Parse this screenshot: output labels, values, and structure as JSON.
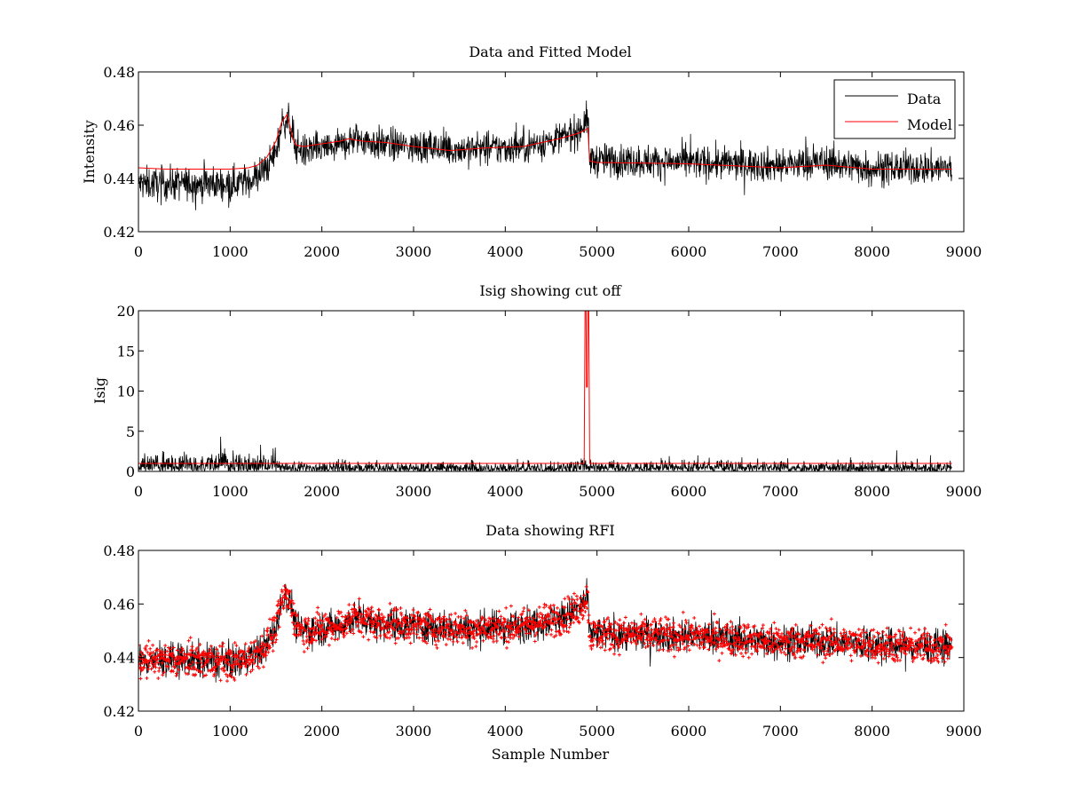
{
  "chart_data": [
    {
      "type": "line",
      "title": "Data and Fitted Model",
      "xlabel": "",
      "ylabel": "Intensity",
      "xlim": [
        0,
        9000
      ],
      "ylim": [
        0.42,
        0.48
      ],
      "xticks": [
        0,
        1000,
        2000,
        3000,
        4000,
        5000,
        6000,
        7000,
        8000,
        9000
      ],
      "yticks": [
        0.42,
        0.44,
        0.46,
        0.48
      ],
      "ytick_labels": [
        "0.42",
        "0.44",
        "0.46",
        "0.48"
      ],
      "legend_position": "top-right",
      "grid": false,
      "series": [
        {
          "name": "Data",
          "color": "#000000",
          "render": "noisy",
          "noise_amplitude": 0.006,
          "x": [
            0,
            200,
            500,
            800,
            1000,
            1200,
            1300,
            1400,
            1500,
            1560,
            1600,
            1640,
            1680,
            1720,
            1800,
            2000,
            2200,
            2300,
            2400,
            2600,
            3000,
            3400,
            3800,
            4200,
            4600,
            4800,
            4880,
            4900,
            4920,
            5000,
            6000,
            7000,
            7500,
            8000,
            8500,
            8870
          ],
          "y": [
            0.438,
            0.438,
            0.438,
            0.438,
            0.438,
            0.439,
            0.441,
            0.444,
            0.45,
            0.46,
            0.462,
            0.461,
            0.457,
            0.452,
            0.45,
            0.451,
            0.452,
            0.454,
            0.455,
            0.453,
            0.452,
            0.451,
            0.451,
            0.452,
            0.455,
            0.458,
            0.462,
            0.462,
            0.447,
            0.447,
            0.446,
            0.445,
            0.446,
            0.444,
            0.444,
            0.444
          ]
        },
        {
          "name": "Model",
          "color": "#ff0000",
          "render": "line",
          "x": [
            0,
            300,
            700,
            1000,
            1200,
            1300,
            1400,
            1500,
            1560,
            1620,
            1650,
            1680,
            1720,
            1800,
            2000,
            2200,
            2300,
            2350,
            2450,
            2700,
            3000,
            3400,
            3800,
            4200,
            4600,
            4800,
            4890,
            4900,
            4920,
            5000,
            6000,
            7000,
            7500,
            8000,
            8500,
            8870
          ],
          "y": [
            0.444,
            0.4435,
            0.4435,
            0.4435,
            0.444,
            0.445,
            0.448,
            0.454,
            0.461,
            0.464,
            0.46,
            0.455,
            0.4525,
            0.452,
            0.453,
            0.454,
            0.455,
            0.4545,
            0.454,
            0.4535,
            0.452,
            0.4505,
            0.4515,
            0.452,
            0.455,
            0.457,
            0.4585,
            0.459,
            0.4465,
            0.446,
            0.4455,
            0.444,
            0.445,
            0.4435,
            0.4435,
            0.4435
          ]
        }
      ]
    },
    {
      "type": "line",
      "title": "Isig showing cut off",
      "xlabel": "",
      "ylabel": "Isig",
      "xlim": [
        0,
        9000
      ],
      "ylim": [
        0,
        20
      ],
      "xticks": [
        0,
        1000,
        2000,
        3000,
        4000,
        5000,
        6000,
        7000,
        8000,
        9000
      ],
      "yticks": [
        0,
        5,
        10,
        15,
        20
      ],
      "ytick_labels": [
        "0",
        "5",
        "10",
        "15",
        "20"
      ],
      "grid": false,
      "series": [
        {
          "color": "#000000",
          "render": "noisy-positive",
          "noise_amplitude": 1.8,
          "x": [
            0,
            1500,
            1520,
            4800,
            4850,
            5000,
            8870
          ],
          "y": [
            1.1,
            1.1,
            0.6,
            0.6,
            0.9,
            0.7,
            0.6
          ]
        },
        {
          "color": "#ff0000",
          "render": "line",
          "x": [
            0,
            1500,
            1520,
            4860,
            4870,
            4880,
            4885,
            4895,
            4900,
            4905,
            4910,
            4920,
            4930,
            8000,
            8870
          ],
          "y": [
            1.0,
            1.0,
            1.0,
            1.0,
            20,
            20,
            10.5,
            10.5,
            20,
            20,
            20,
            1.0,
            1.0,
            1.0,
            1.0
          ]
        }
      ]
    },
    {
      "type": "scatter",
      "title": "Data showing RFI",
      "xlabel": "Sample Number",
      "ylabel": "",
      "xlim": [
        0,
        9000
      ],
      "ylim": [
        0.42,
        0.48
      ],
      "xticks": [
        0,
        1000,
        2000,
        3000,
        4000,
        5000,
        6000,
        7000,
        8000,
        9000
      ],
      "yticks": [
        0.42,
        0.44,
        0.46,
        0.48
      ],
      "ytick_labels": [
        "0.42",
        "0.44",
        "0.46",
        "0.48"
      ],
      "grid": false,
      "series": [
        {
          "color": "#000000",
          "render": "noisy",
          "noise_amplitude": 0.006,
          "x": [
            0,
            200,
            500,
            800,
            1000,
            1200,
            1300,
            1400,
            1500,
            1560,
            1600,
            1640,
            1680,
            1720,
            1800,
            2000,
            2200,
            2300,
            2400,
            2600,
            3000,
            3400,
            3800,
            4200,
            4600,
            4800,
            4880,
            4900,
            4920,
            5000,
            6000,
            7000,
            7500,
            8000,
            8500,
            8870
          ],
          "y": [
            0.439,
            0.439,
            0.439,
            0.439,
            0.438,
            0.44,
            0.442,
            0.445,
            0.451,
            0.46,
            0.463,
            0.462,
            0.458,
            0.452,
            0.45,
            0.451,
            0.452,
            0.454,
            0.455,
            0.453,
            0.452,
            0.451,
            0.451,
            0.452,
            0.455,
            0.458,
            0.462,
            0.462,
            0.448,
            0.449,
            0.448,
            0.446,
            0.446,
            0.445,
            0.444,
            0.444
          ]
        },
        {
          "color": "#ff0000",
          "render": "markers",
          "note_marker": "plus",
          "x": [
            0,
            200,
            500,
            800,
            1000,
            1200,
            1300,
            1400,
            1500,
            1560,
            1600,
            1640,
            1680,
            1720,
            1800,
            2000,
            2200,
            2300,
            2400,
            2600,
            3000,
            3400,
            3800,
            4200,
            4600,
            4800,
            4880,
            4900,
            4920,
            5000,
            6000,
            7000,
            7500,
            8000,
            8500,
            8870
          ],
          "y": [
            0.439,
            0.439,
            0.439,
            0.439,
            0.438,
            0.44,
            0.442,
            0.445,
            0.451,
            0.46,
            0.463,
            0.462,
            0.458,
            0.452,
            0.45,
            0.451,
            0.452,
            0.454,
            0.455,
            0.453,
            0.452,
            0.451,
            0.451,
            0.452,
            0.455,
            0.458,
            0.462,
            0.462,
            0.448,
            0.449,
            0.448,
            0.446,
            0.446,
            0.445,
            0.444,
            0.444
          ]
        }
      ]
    }
  ]
}
